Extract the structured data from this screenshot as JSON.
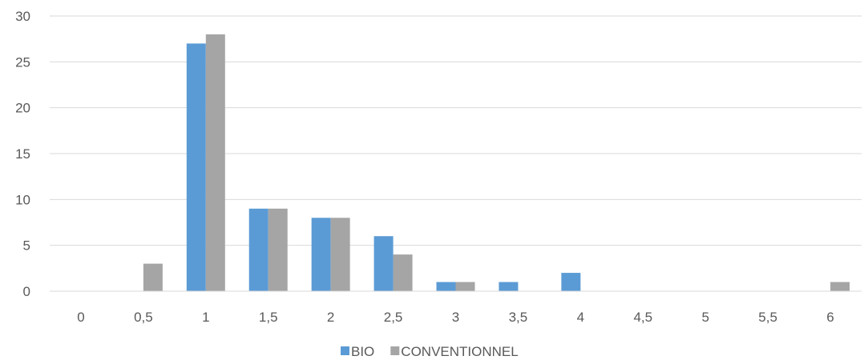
{
  "chart_data": {
    "type": "bar",
    "categories": [
      "0",
      "0,5",
      "1",
      "1,5",
      "2",
      "2,5",
      "3",
      "3,5",
      "4",
      "4,5",
      "5",
      "5,5",
      "6"
    ],
    "series": [
      {
        "name": "BIO",
        "color": "#5B9BD5",
        "values": [
          0,
          0,
          27,
          9,
          8,
          6,
          1,
          1,
          2,
          0,
          0,
          0,
          0
        ]
      },
      {
        "name": "CONVENTIONNEL",
        "color": "#A5A5A5",
        "values": [
          0,
          3,
          28,
          9,
          8,
          4,
          1,
          0,
          0,
          0,
          0,
          0,
          1
        ]
      }
    ],
    "ylim": [
      0,
      30
    ],
    "yticks": [
      "0",
      "5",
      "10",
      "15",
      "20",
      "25",
      "30"
    ],
    "grid": true,
    "legend_position": "bottom"
  }
}
